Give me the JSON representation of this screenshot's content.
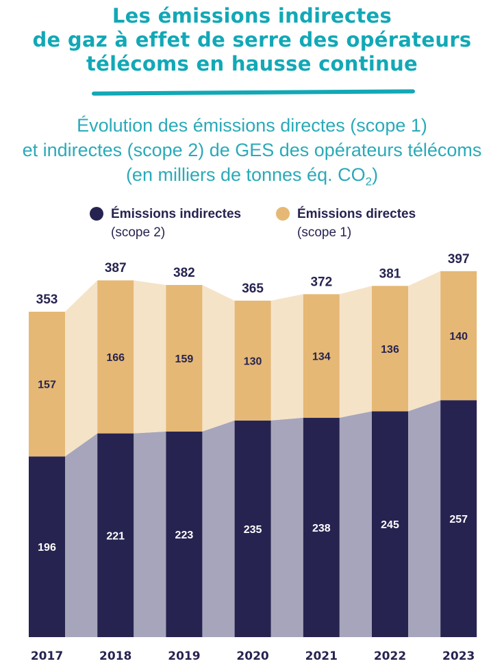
{
  "title": [
    "Les émissions indirectes",
    "de gaz à effet de serre des opérateurs",
    "télécoms en hausse continue"
  ],
  "subtitle": [
    "Évolution des émissions directes (scope 1)",
    "et indirectes (scope 2) de GES des opérateurs télécoms",
    "(en milliers de tonnes éq. CO",
    "2",
    ")"
  ],
  "colors": {
    "title": "#12a8b6",
    "indirect": "#262350",
    "direct": "#e5b875",
    "indirect_connector": "#a6a5bb",
    "direct_connector": "#f5e3c8"
  },
  "chart_data": {
    "type": "bar",
    "stacked": true,
    "categories": [
      "2017",
      "2018",
      "2019",
      "2020",
      "2021",
      "2022",
      "2023"
    ],
    "series": [
      {
        "name": "Émissions indirectes",
        "subname": "(scope 2)",
        "values": [
          196,
          221,
          223,
          235,
          238,
          245,
          257
        ]
      },
      {
        "name": "Émissions directes",
        "subname": "(scope 1)",
        "values": [
          157,
          166,
          159,
          130,
          134,
          136,
          140
        ]
      }
    ],
    "totals": [
      "353",
      "387",
      "382",
      "365",
      "372",
      "381",
      "397"
    ],
    "legend_position": "top",
    "grid": false,
    "ylim": [
      0,
      397
    ]
  }
}
